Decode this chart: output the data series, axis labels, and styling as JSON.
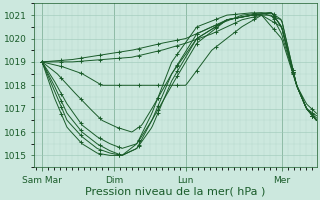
{
  "bg_color": "#cce8de",
  "grid_color": "#9dc8b8",
  "line_color": "#1a5c2a",
  "ylim": [
    1014.5,
    1021.5
  ],
  "yticks": [
    1015,
    1016,
    1017,
    1018,
    1019,
    1020,
    1021
  ],
  "xlabel": "Pression niveau de la mer( hPa )",
  "xlabel_fontsize": 8,
  "tick_fontsize": 6.5,
  "day_labels": [
    "Sam Mar",
    "Dim",
    "Lun",
    "Mer"
  ],
  "day_positions": [
    0,
    72,
    144,
    240
  ],
  "xlim": [
    -8,
    275
  ],
  "series_waypoints": [
    [
      [
        0,
        1019.0
      ],
      [
        30,
        1019.1
      ],
      [
        60,
        1019.3
      ],
      [
        90,
        1019.5
      ],
      [
        120,
        1019.8
      ],
      [
        144,
        1020.0
      ],
      [
        170,
        1020.5
      ],
      [
        200,
        1021.0
      ],
      [
        220,
        1021.1
      ],
      [
        240,
        1020.8
      ],
      [
        255,
        1018.0
      ],
      [
        265,
        1017.2
      ],
      [
        275,
        1016.8
      ]
    ],
    [
      [
        0,
        1019.0
      ],
      [
        30,
        1019.0
      ],
      [
        60,
        1019.1
      ],
      [
        90,
        1019.2
      ],
      [
        120,
        1019.5
      ],
      [
        144,
        1019.8
      ],
      [
        170,
        1020.2
      ],
      [
        200,
        1020.8
      ],
      [
        220,
        1021.0
      ],
      [
        240,
        1020.5
      ],
      [
        255,
        1018.0
      ],
      [
        265,
        1017.0
      ],
      [
        275,
        1016.7
      ]
    ],
    [
      [
        0,
        1019.0
      ],
      [
        20,
        1018.8
      ],
      [
        40,
        1018.5
      ],
      [
        60,
        1018.0
      ],
      [
        80,
        1018.0
      ],
      [
        100,
        1018.0
      ],
      [
        120,
        1018.0
      ],
      [
        144,
        1018.0
      ],
      [
        170,
        1019.5
      ],
      [
        200,
        1020.5
      ],
      [
        220,
        1021.0
      ],
      [
        240,
        1020.0
      ],
      [
        255,
        1018.0
      ],
      [
        265,
        1017.0
      ],
      [
        275,
        1016.6
      ]
    ],
    [
      [
        0,
        1019.0
      ],
      [
        15,
        1018.5
      ],
      [
        30,
        1017.8
      ],
      [
        48,
        1017.0
      ],
      [
        60,
        1016.5
      ],
      [
        75,
        1016.2
      ],
      [
        90,
        1016.0
      ],
      [
        100,
        1016.3
      ],
      [
        110,
        1017.0
      ],
      [
        130,
        1018.5
      ],
      [
        155,
        1020.0
      ],
      [
        185,
        1020.8
      ],
      [
        210,
        1021.0
      ],
      [
        230,
        1021.0
      ],
      [
        240,
        1020.2
      ],
      [
        255,
        1018.0
      ],
      [
        265,
        1017.0
      ],
      [
        275,
        1016.5
      ]
    ],
    [
      [
        0,
        1019.0
      ],
      [
        12,
        1018.2
      ],
      [
        25,
        1017.2
      ],
      [
        40,
        1016.3
      ],
      [
        55,
        1015.8
      ],
      [
        68,
        1015.5
      ],
      [
        80,
        1015.3
      ],
      [
        95,
        1015.5
      ],
      [
        110,
        1016.5
      ],
      [
        130,
        1018.0
      ],
      [
        155,
        1019.8
      ],
      [
        185,
        1020.8
      ],
      [
        210,
        1021.0
      ],
      [
        230,
        1021.1
      ],
      [
        240,
        1020.5
      ],
      [
        255,
        1018.0
      ],
      [
        265,
        1017.0
      ],
      [
        275,
        1016.5
      ]
    ],
    [
      [
        0,
        1019.0
      ],
      [
        12,
        1018.0
      ],
      [
        25,
        1016.8
      ],
      [
        40,
        1016.0
      ],
      [
        55,
        1015.5
      ],
      [
        68,
        1015.2
      ],
      [
        80,
        1015.0
      ],
      [
        95,
        1015.3
      ],
      [
        110,
        1016.2
      ],
      [
        130,
        1018.2
      ],
      [
        155,
        1020.0
      ],
      [
        185,
        1020.8
      ],
      [
        210,
        1021.0
      ],
      [
        230,
        1021.1
      ],
      [
        240,
        1020.5
      ],
      [
        255,
        1018.0
      ],
      [
        265,
        1017.0
      ],
      [
        275,
        1016.5
      ]
    ],
    [
      [
        0,
        1019.0
      ],
      [
        12,
        1017.8
      ],
      [
        25,
        1016.5
      ],
      [
        40,
        1015.8
      ],
      [
        55,
        1015.3
      ],
      [
        68,
        1015.1
      ],
      [
        80,
        1015.0
      ],
      [
        95,
        1015.3
      ],
      [
        110,
        1016.5
      ],
      [
        130,
        1018.5
      ],
      [
        155,
        1020.2
      ],
      [
        185,
        1020.8
      ],
      [
        210,
        1021.0
      ],
      [
        230,
        1021.1
      ],
      [
        240,
        1020.5
      ],
      [
        255,
        1018.0
      ],
      [
        265,
        1017.0
      ],
      [
        275,
        1016.5
      ]
    ],
    [
      [
        0,
        1019.0
      ],
      [
        12,
        1017.5
      ],
      [
        25,
        1016.2
      ],
      [
        40,
        1015.5
      ],
      [
        55,
        1015.1
      ],
      [
        68,
        1015.0
      ],
      [
        80,
        1015.0
      ],
      [
        95,
        1015.5
      ],
      [
        110,
        1016.8
      ],
      [
        130,
        1019.0
      ],
      [
        155,
        1020.5
      ],
      [
        185,
        1021.0
      ],
      [
        210,
        1021.1
      ],
      [
        230,
        1021.1
      ],
      [
        240,
        1020.8
      ],
      [
        255,
        1018.0
      ],
      [
        265,
        1017.0
      ],
      [
        275,
        1016.5
      ]
    ]
  ]
}
